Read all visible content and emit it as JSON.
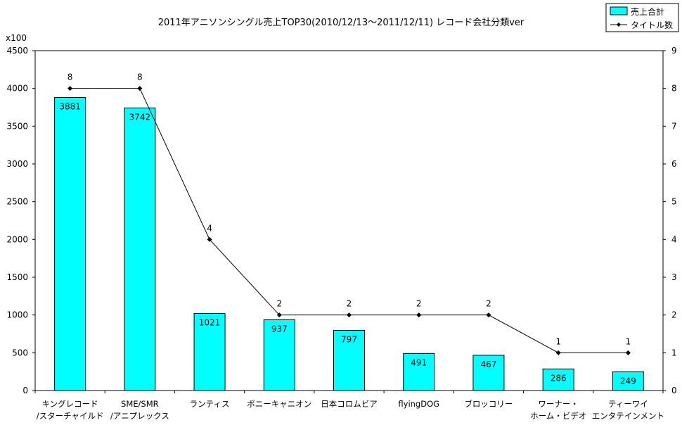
{
  "chart_data": {
    "type": "bar+line",
    "title": "2011年アニソンシングル売上TOP30(2010/12/13～2011/12/11) レコード会社分類ver",
    "y_unit_label": "x100",
    "categories": [
      [
        "キングレコード",
        "/スターチャイルド"
      ],
      [
        "SME/SMR",
        "/アニプレックス"
      ],
      [
        "ランティス"
      ],
      [
        "ポニーキャニオン"
      ],
      [
        "日本コロムビア"
      ],
      [
        "flyingDOG"
      ],
      [
        "ブロッコリー"
      ],
      [
        "ワーナー・",
        "ホーム・ビデオ"
      ],
      [
        "ティーワイ",
        "エンタテインメント"
      ]
    ],
    "series": [
      {
        "name": "売上合計",
        "type": "bar",
        "axis": "left",
        "color": "#00FFFF",
        "values": [
          3881,
          3742,
          1021,
          937,
          797,
          491,
          467,
          286,
          249
        ]
      },
      {
        "name": "タイトル数",
        "type": "line",
        "axis": "right",
        "color": "#000000",
        "values": [
          8,
          8,
          4,
          2,
          2,
          2,
          2,
          1,
          1
        ]
      }
    ],
    "y_left": {
      "range": [
        0,
        4500
      ],
      "ticks": [
        0,
        500,
        1000,
        1500,
        2000,
        2500,
        3000,
        3500,
        4000,
        4500
      ]
    },
    "y_right": {
      "range": [
        0,
        9
      ],
      "ticks": [
        0,
        1,
        2,
        3,
        4,
        5,
        6,
        7,
        8,
        9
      ]
    },
    "grid": false,
    "legend": "top-right"
  }
}
